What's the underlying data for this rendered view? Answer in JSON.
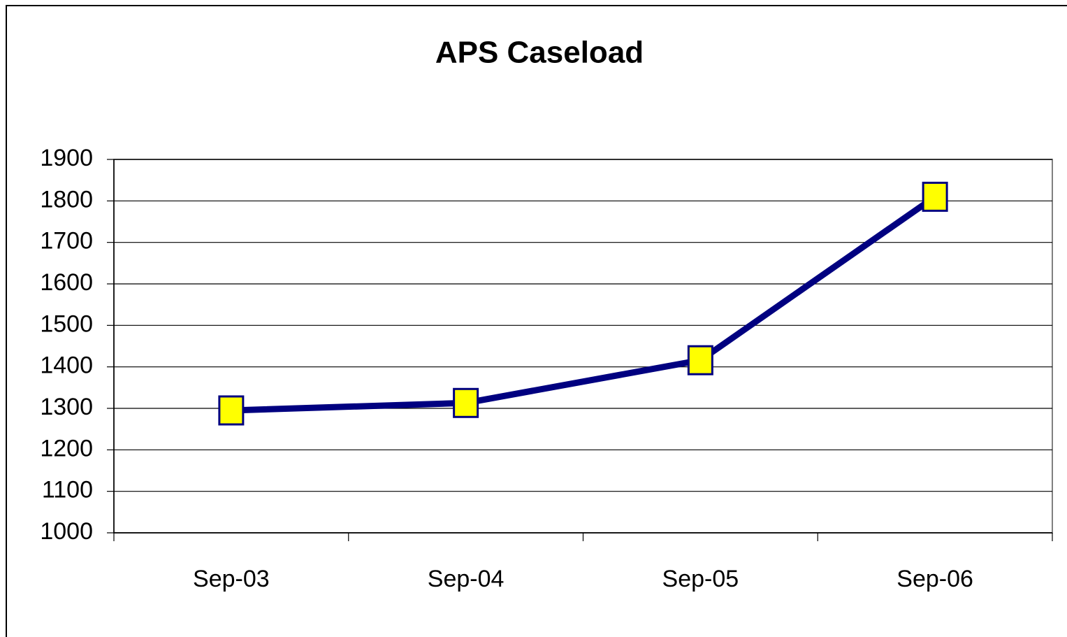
{
  "chart_data": {
    "type": "line",
    "title": "APS Caseload",
    "categories": [
      "Sep-03",
      "Sep-04",
      "Sep-05",
      "Sep-06"
    ],
    "series": [
      {
        "name": "APS Caseload",
        "color": "#000080",
        "marker_color": "#ffff00",
        "values": [
          1295,
          1313,
          1416,
          1810
        ]
      }
    ],
    "ylim": [
      1000,
      1900
    ],
    "yticks": [
      1000,
      1100,
      1200,
      1300,
      1400,
      1500,
      1600,
      1700,
      1800,
      1900
    ],
    "grid": true
  }
}
